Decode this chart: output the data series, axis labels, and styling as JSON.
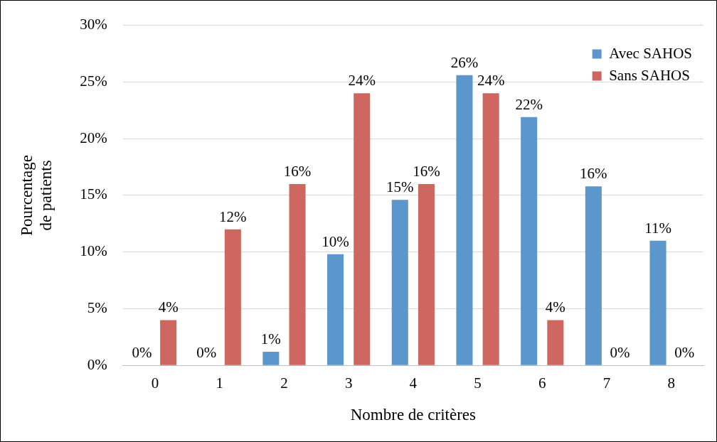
{
  "chart_data": {
    "type": "bar",
    "xlabel": "Nombre de critères",
    "ylabel": "Pourcentage\nde patients",
    "categories": [
      "0",
      "1",
      "2",
      "3",
      "4",
      "5",
      "6",
      "7",
      "8"
    ],
    "series": [
      {
        "name": "Avec SAHOS",
        "color": "#5b96cc",
        "values": [
          0,
          0,
          1.2,
          9.8,
          14.6,
          25.6,
          21.9,
          15.8,
          11.0
        ],
        "value_labels": [
          "0%",
          "0%",
          "1%",
          "10%",
          "15%",
          "26%",
          "22%",
          "16%",
          "11%"
        ]
      },
      {
        "name": "Sans SAHOS",
        "color": "#cd6760",
        "values": [
          4,
          12,
          16,
          24,
          16,
          24,
          4,
          0,
          0
        ],
        "value_labels": [
          "4%",
          "12%",
          "16%",
          "24%",
          "16%",
          "24%",
          "4%",
          "0%",
          "0%"
        ]
      }
    ],
    "ylim": [
      0,
      30
    ],
    "yticks": [
      {
        "value": 0,
        "label": "0%"
      },
      {
        "value": 5,
        "label": "5%"
      },
      {
        "value": 10,
        "label": "10%"
      },
      {
        "value": 15,
        "label": "15%"
      },
      {
        "value": 20,
        "label": "20%"
      },
      {
        "value": 25,
        "label": "25%"
      },
      {
        "value": 30,
        "label": "30%"
      }
    ],
    "grid": "y",
    "legend": "top right"
  }
}
